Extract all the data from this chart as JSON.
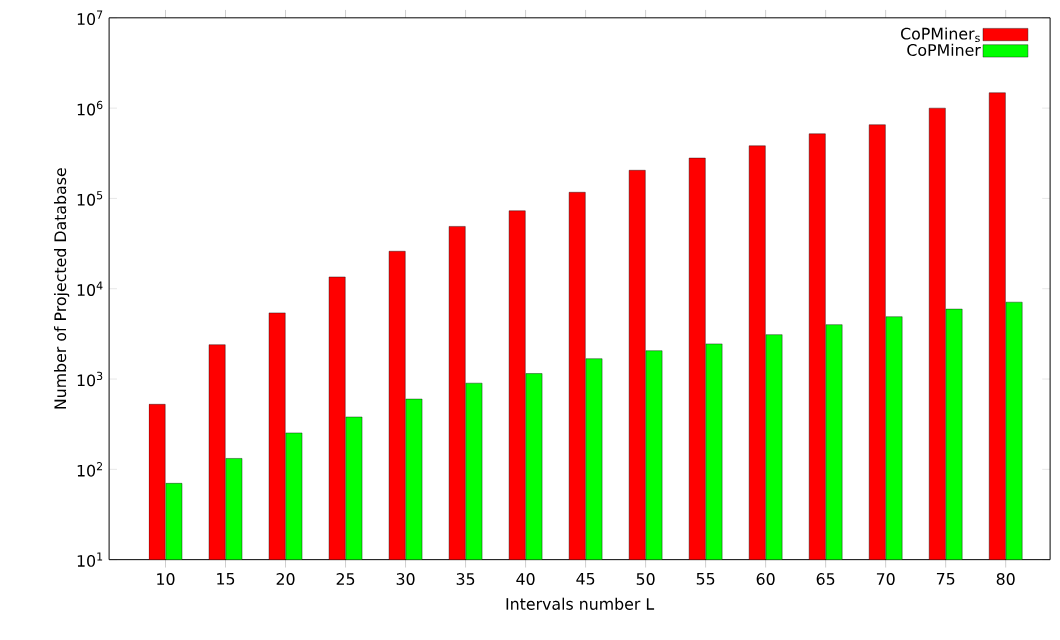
{
  "chart_data": {
    "type": "bar",
    "xlabel": "Intervals number L",
    "ylabel": "Number of Projected Database",
    "categories": [
      "10",
      "15",
      "20",
      "25",
      "30",
      "35",
      "40",
      "45",
      "50",
      "55",
      "60",
      "65",
      "70",
      "75",
      "80"
    ],
    "series": [
      {
        "name": "CoPMiner$_{s}$",
        "color": "#ff0000",
        "values": [
          525,
          2400,
          5400,
          13500,
          26000,
          49000,
          73000,
          117000,
          205000,
          280000,
          383000,
          520000,
          655000,
          1000000,
          1480000
        ]
      },
      {
        "name": "CoPMiner",
        "color": "#00ff00",
        "values": [
          70,
          132,
          253,
          380,
          600,
          900,
          1150,
          1680,
          2060,
          2450,
          3100,
          4000,
          4900,
          5950,
          7100
        ]
      }
    ],
    "log": "y",
    "ylim": [
      10,
      10000000
    ],
    "yticks": [
      {
        "value": 10,
        "label": "10$^{1}$"
      },
      {
        "value": 100,
        "label": "10$^{2}$"
      },
      {
        "value": 1000,
        "label": "10$^{3}$"
      },
      {
        "value": 10000,
        "label": "10$^{4}$"
      },
      {
        "value": 100000,
        "label": "10$^{5}$"
      },
      {
        "value": 1000000,
        "label": "10$^{6}$"
      },
      {
        "value": 10000000,
        "label": "10$^{7}$"
      }
    ],
    "grid": false,
    "legend": "top right"
  }
}
